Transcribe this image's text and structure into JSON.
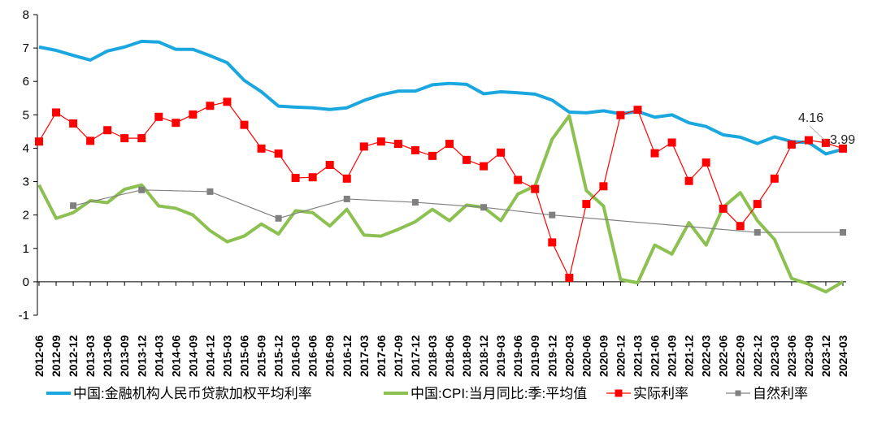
{
  "chart_data": {
    "type": "line",
    "title": "",
    "xlabel": "",
    "ylabel": "",
    "ylim": [
      -1,
      8
    ],
    "yticks": [
      -1,
      0,
      1,
      2,
      3,
      4,
      5,
      6,
      7,
      8
    ],
    "grid": false,
    "legend_position": "bottom",
    "categories": [
      "2012-06",
      "2012-09",
      "2012-12",
      "2013-03",
      "2013-06",
      "2013-09",
      "2013-12",
      "2014-03",
      "2014-06",
      "2014-09",
      "2014-12",
      "2015-03",
      "2015-06",
      "2015-09",
      "2015-12",
      "2016-03",
      "2016-06",
      "2016-09",
      "2016-12",
      "2017-03",
      "2017-06",
      "2017-09",
      "2017-12",
      "2018-03",
      "2018-06",
      "2018-09",
      "2018-12",
      "2019-03",
      "2019-06",
      "2019-09",
      "2019-12",
      "2020-03",
      "2020-06",
      "2020-09",
      "2020-12",
      "2021-03",
      "2021-06",
      "2021-09",
      "2021-12",
      "2022-03",
      "2022-06",
      "2022-09",
      "2022-12",
      "2023-03",
      "2023-06",
      "2023-09",
      "2023-12",
      "2024-03"
    ],
    "series": [
      {
        "name": "中国:金融机构人民币贷款加权平均利率",
        "color": "#1aa7e0",
        "marker": "none",
        "values": [
          7.03,
          6.93,
          6.78,
          6.64,
          6.91,
          7.03,
          7.2,
          7.18,
          6.96,
          6.96,
          6.77,
          6.56,
          6.03,
          5.69,
          5.26,
          5.23,
          5.21,
          5.16,
          5.21,
          5.43,
          5.6,
          5.71,
          5.71,
          5.9,
          5.94,
          5.91,
          5.63,
          5.69,
          5.66,
          5.62,
          5.44,
          5.08,
          5.06,
          5.12,
          5.03,
          5.1,
          4.93,
          5.0,
          4.76,
          4.65,
          4.4,
          4.33,
          4.14,
          4.34,
          4.2,
          4.17,
          3.83,
          3.97
        ]
      },
      {
        "name": "中国:CPI:当月同比:季:平均值",
        "color": "#8cc152",
        "marker": "none",
        "values": [
          2.9,
          1.9,
          2.07,
          2.43,
          2.37,
          2.77,
          2.9,
          2.27,
          2.2,
          2.0,
          1.53,
          1.2,
          1.37,
          1.73,
          1.43,
          2.13,
          2.07,
          1.67,
          2.17,
          1.4,
          1.37,
          1.57,
          1.8,
          2.17,
          1.83,
          2.3,
          2.23,
          1.83,
          2.63,
          2.87,
          4.27,
          4.97,
          2.73,
          2.27,
          0.07,
          -0.03,
          1.1,
          0.83,
          1.77,
          1.1,
          2.23,
          2.67,
          1.83,
          1.27,
          0.1,
          -0.07,
          -0.3,
          0.0
        ]
      },
      {
        "name": "实际利率",
        "color": "#ff0000",
        "marker": "square",
        "values": [
          4.2,
          5.07,
          4.74,
          4.22,
          4.54,
          4.3,
          4.3,
          4.94,
          4.76,
          5.01,
          5.27,
          5.39,
          4.7,
          3.99,
          3.84,
          3.11,
          3.13,
          3.5,
          3.09,
          4.05,
          4.2,
          4.13,
          3.94,
          3.77,
          4.13,
          3.65,
          3.46,
          3.87,
          3.05,
          2.78,
          1.18,
          0.12,
          2.33,
          2.86,
          4.99,
          5.15,
          3.85,
          4.17,
          3.02,
          3.57,
          2.19,
          1.67,
          2.33,
          3.09,
          4.11,
          4.24,
          4.16,
          3.99
        ]
      },
      {
        "name": "自然利率",
        "color": "#808080",
        "marker": "square",
        "values": [
          null,
          null,
          2.28,
          null,
          null,
          null,
          2.75,
          null,
          null,
          null,
          2.7,
          null,
          null,
          null,
          1.9,
          null,
          null,
          null,
          2.48,
          null,
          null,
          null,
          2.38,
          null,
          null,
          null,
          2.23,
          null,
          null,
          null,
          2.0,
          null,
          null,
          null,
          null,
          null,
          null,
          null,
          null,
          null,
          null,
          null,
          1.48,
          null,
          null,
          null,
          null,
          1.48
        ]
      }
    ],
    "annotations": [
      {
        "text": "4.16",
        "series": "实际利率",
        "category": "2023-12"
      },
      {
        "text": "3.99",
        "series": "实际利率",
        "category": "2024-03"
      }
    ]
  }
}
